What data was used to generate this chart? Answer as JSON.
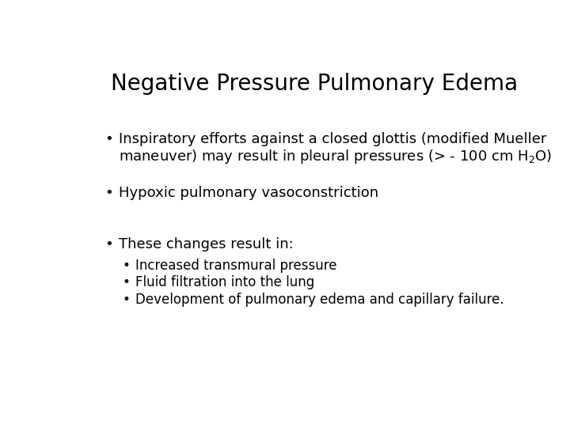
{
  "title": "Negative Pressure Pulmonary Edema",
  "background_color": "#ffffff",
  "text_color": "#000000",
  "title_fontsize": 20,
  "body_fontsize": 13,
  "sub_fontsize": 12,
  "font_family": "DejaVu Sans Condensed",
  "bullet1_line1": "Inspiratory efforts against a closed glottis (modified Mueller",
  "bullet1_line2": "maneuver) may result in pleural pressures (> - 100 cm H$_2$O)",
  "bullet2": "Hypoxic pulmonary vasoconstriction",
  "bullet3": "These changes result in:",
  "sub_bullet1": "Increased transmural pressure",
  "sub_bullet2": "Fluid filtration into the lung",
  "sub_bullet3": "Development of pulmonary edema and capillary failure."
}
